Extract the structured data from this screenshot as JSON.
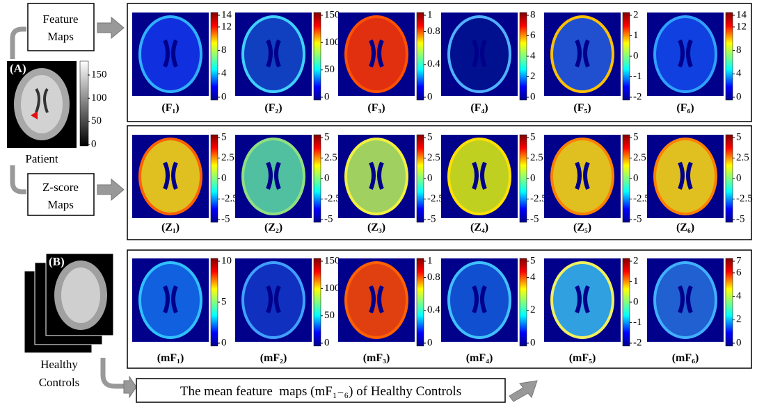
{
  "patient": {
    "label": "(A)",
    "colorbar_ticks": [
      150,
      100,
      50,
      0
    ],
    "caption": "Patient"
  },
  "feature_maps_box": [
    "Feature",
    "Maps"
  ],
  "zscore_maps_box": [
    "Z-score",
    "Maps"
  ],
  "controls": {
    "label": "(B)",
    "caption": [
      "Healthy",
      "Controls"
    ]
  },
  "rows": [
    {
      "panels": [
        {
          "caption": "(F₁)",
          "ticks": [
            14,
            12,
            8,
            4,
            0
          ]
        },
        {
          "caption": "(F₂)",
          "ticks": [
            150,
            100,
            50,
            0
          ]
        },
        {
          "caption": "(F₃)",
          "ticks": [
            1,
            0.8,
            0.4,
            0
          ]
        },
        {
          "caption": "(F₄)",
          "ticks": [
            8,
            6,
            4,
            2,
            0
          ]
        },
        {
          "caption": "(F₅)",
          "ticks": [
            2,
            1,
            0,
            -1,
            -2
          ]
        },
        {
          "caption": "(F₆)",
          "ticks": [
            14,
            12,
            8,
            4,
            0
          ]
        }
      ]
    },
    {
      "panels": [
        {
          "caption": "(Z₁)",
          "ticks": [
            5,
            2.5,
            0,
            -2.5,
            -5
          ]
        },
        {
          "caption": "(Z₂)",
          "ticks": [
            5,
            2.5,
            0,
            -2.5,
            -5
          ]
        },
        {
          "caption": "(Z₃)",
          "ticks": [
            5,
            2.5,
            0,
            -2.5,
            -5
          ]
        },
        {
          "caption": "(Z₄)",
          "ticks": [
            5,
            2.5,
            0,
            -2.5,
            -5
          ]
        },
        {
          "caption": "(Z₅)",
          "ticks": [
            5,
            2.5,
            0,
            -2.5,
            -5
          ]
        },
        {
          "caption": "(Z₆)",
          "ticks": [
            5,
            2.5,
            0,
            -2.5,
            -5
          ]
        }
      ]
    },
    {
      "panels": [
        {
          "caption": "(mF₁)",
          "ticks": [
            10,
            5,
            0
          ]
        },
        {
          "caption": "(mF₂)",
          "ticks": [
            150,
            100,
            50,
            0
          ]
        },
        {
          "caption": "(mF₃)",
          "ticks": [
            1,
            0.8,
            0.4,
            0
          ]
        },
        {
          "caption": "(mF₄)",
          "ticks": [
            5,
            4,
            2,
            0
          ]
        },
        {
          "caption": "(mF₅)",
          "ticks": [
            2,
            1,
            0,
            -1,
            -2
          ]
        },
        {
          "caption": "(mF₆)",
          "ticks": [
            7,
            6,
            4,
            2,
            0
          ]
        }
      ]
    }
  ],
  "mean_caption": "The mean feature  maps (mF₁₋₆) of Healthy Controls"
}
